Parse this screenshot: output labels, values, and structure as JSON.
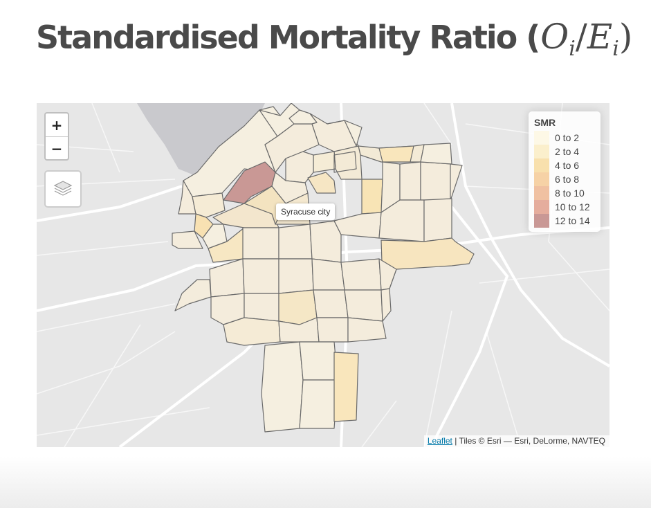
{
  "title": {
    "text": "Standardised Mortality Ratio (",
    "math_O": "O",
    "math_sub_i1": "i",
    "math_slash": "/",
    "math_E": "E",
    "math_sub_i2": "i",
    "math_close": ")"
  },
  "map": {
    "zoom_in_label": "+",
    "zoom_out_label": "−",
    "layers_icon": "layers-icon",
    "tooltip": "Syracuse city",
    "attribution": {
      "link_text": "Leaflet",
      "rest": " | Tiles © Esri — Esri, DeLorme, NAVTEQ"
    }
  },
  "legend": {
    "title": "SMR",
    "items": [
      {
        "label": "0 to 2",
        "color": "#fdf8e6"
      },
      {
        "label": "2 to 4",
        "color": "#fbefcc"
      },
      {
        "label": "4 to 6",
        "color": "#f8e0ad"
      },
      {
        "label": "6 to 8",
        "color": "#f6d2a6"
      },
      {
        "label": "8 to 10",
        "color": "#f0c1a2"
      },
      {
        "label": "10 to 12",
        "color": "#e5ad9d"
      },
      {
        "label": "12 to 14",
        "color": "#c99895"
      }
    ]
  },
  "colors": {
    "tract_outline": "#6a6a6a",
    "water": "#c8c8cc",
    "road": "#ffffff",
    "land": "#e7e7e7"
  }
}
